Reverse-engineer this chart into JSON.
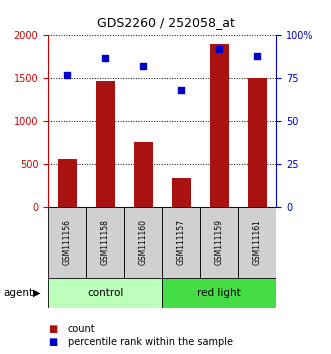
{
  "title": "GDS2260 / 252058_at",
  "samples": [
    "GSM111156",
    "GSM111158",
    "GSM111160",
    "GSM111157",
    "GSM111159",
    "GSM111161"
  ],
  "counts": [
    560,
    1470,
    760,
    340,
    1900,
    1500
  ],
  "percentiles": [
    77,
    87,
    82,
    68,
    92,
    88
  ],
  "bar_color": "#aa1111",
  "dot_color": "#0000cc",
  "ylim_left": [
    0,
    2000
  ],
  "ylim_right": [
    0,
    100
  ],
  "yticks_left": [
    0,
    500,
    1000,
    1500,
    2000
  ],
  "yticks_right": [
    0,
    25,
    50,
    75,
    100
  ],
  "ytick_labels_right": [
    "0",
    "25",
    "50",
    "75",
    "100%"
  ],
  "control_color_light": "#ccffcc",
  "control_color_dark": "#55dd55",
  "agent_label": "agent",
  "legend_count_label": "count",
  "legend_pct_label": "percentile rank within the sample",
  "bar_width": 0.5,
  "n_samples": 6
}
